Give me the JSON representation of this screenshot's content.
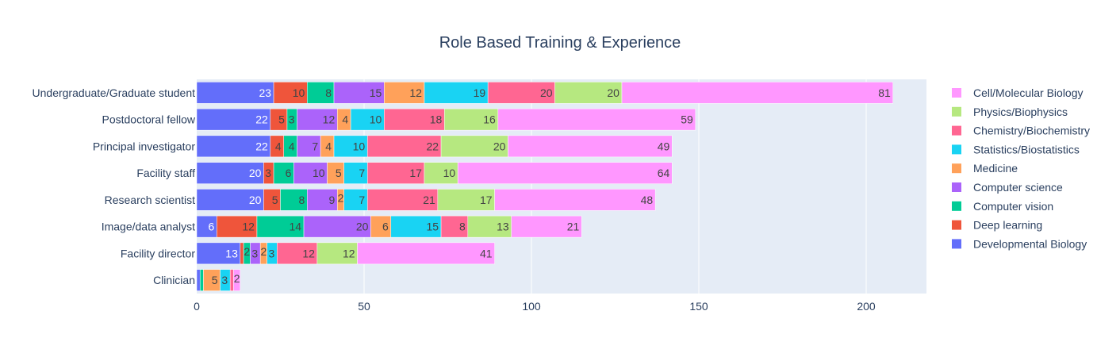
{
  "chart_data": {
    "type": "bar",
    "orientation": "horizontal",
    "stacked": true,
    "title": "Role Based Training & Experience",
    "xlabel": "",
    "ylabel": "",
    "xlim": [
      0,
      218
    ],
    "x_ticks": [
      "0",
      "50",
      "100",
      "150",
      "200"
    ],
    "categories": [
      "Undergraduate/Graduate student",
      "Postdoctoral fellow",
      "Principal investigator",
      "Facility staff",
      "Research scientist",
      "Image/data analyst",
      "Facility director",
      "Clinician"
    ],
    "series": [
      {
        "name": "Developmental Biology",
        "color": "#636efa",
        "values": [
          23,
          22,
          22,
          20,
          20,
          6,
          13,
          1
        ]
      },
      {
        "name": "Deep learning",
        "color": "#ef553b",
        "values": [
          10,
          5,
          4,
          3,
          5,
          12,
          1,
          0
        ]
      },
      {
        "name": "Computer vision",
        "color": "#00cc96",
        "values": [
          8,
          3,
          4,
          6,
          8,
          14,
          2,
          1
        ]
      },
      {
        "name": "Computer science",
        "color": "#ab63fa",
        "values": [
          15,
          12,
          7,
          10,
          9,
          20,
          3,
          0
        ]
      },
      {
        "name": "Medicine",
        "color": "#ffa15a",
        "values": [
          12,
          4,
          4,
          5,
          2,
          6,
          2,
          5
        ]
      },
      {
        "name": "Statistics/Biostatistics",
        "color": "#19d3f3",
        "values": [
          19,
          10,
          10,
          7,
          7,
          15,
          3,
          3
        ]
      },
      {
        "name": "Chemistry/Biochemistry",
        "color": "#ff6692",
        "values": [
          20,
          18,
          22,
          17,
          21,
          8,
          12,
          1
        ]
      },
      {
        "name": "Physics/Biophysics",
        "color": "#b6e880",
        "values": [
          20,
          16,
          20,
          10,
          17,
          13,
          12,
          0
        ]
      },
      {
        "name": "Cell/Molecular Biology",
        "color": "#ff97ff",
        "values": [
          81,
          59,
          49,
          64,
          48,
          21,
          41,
          2
        ]
      }
    ],
    "legend_position": "right",
    "grid": true,
    "plot_background": "#e5ecf6"
  }
}
